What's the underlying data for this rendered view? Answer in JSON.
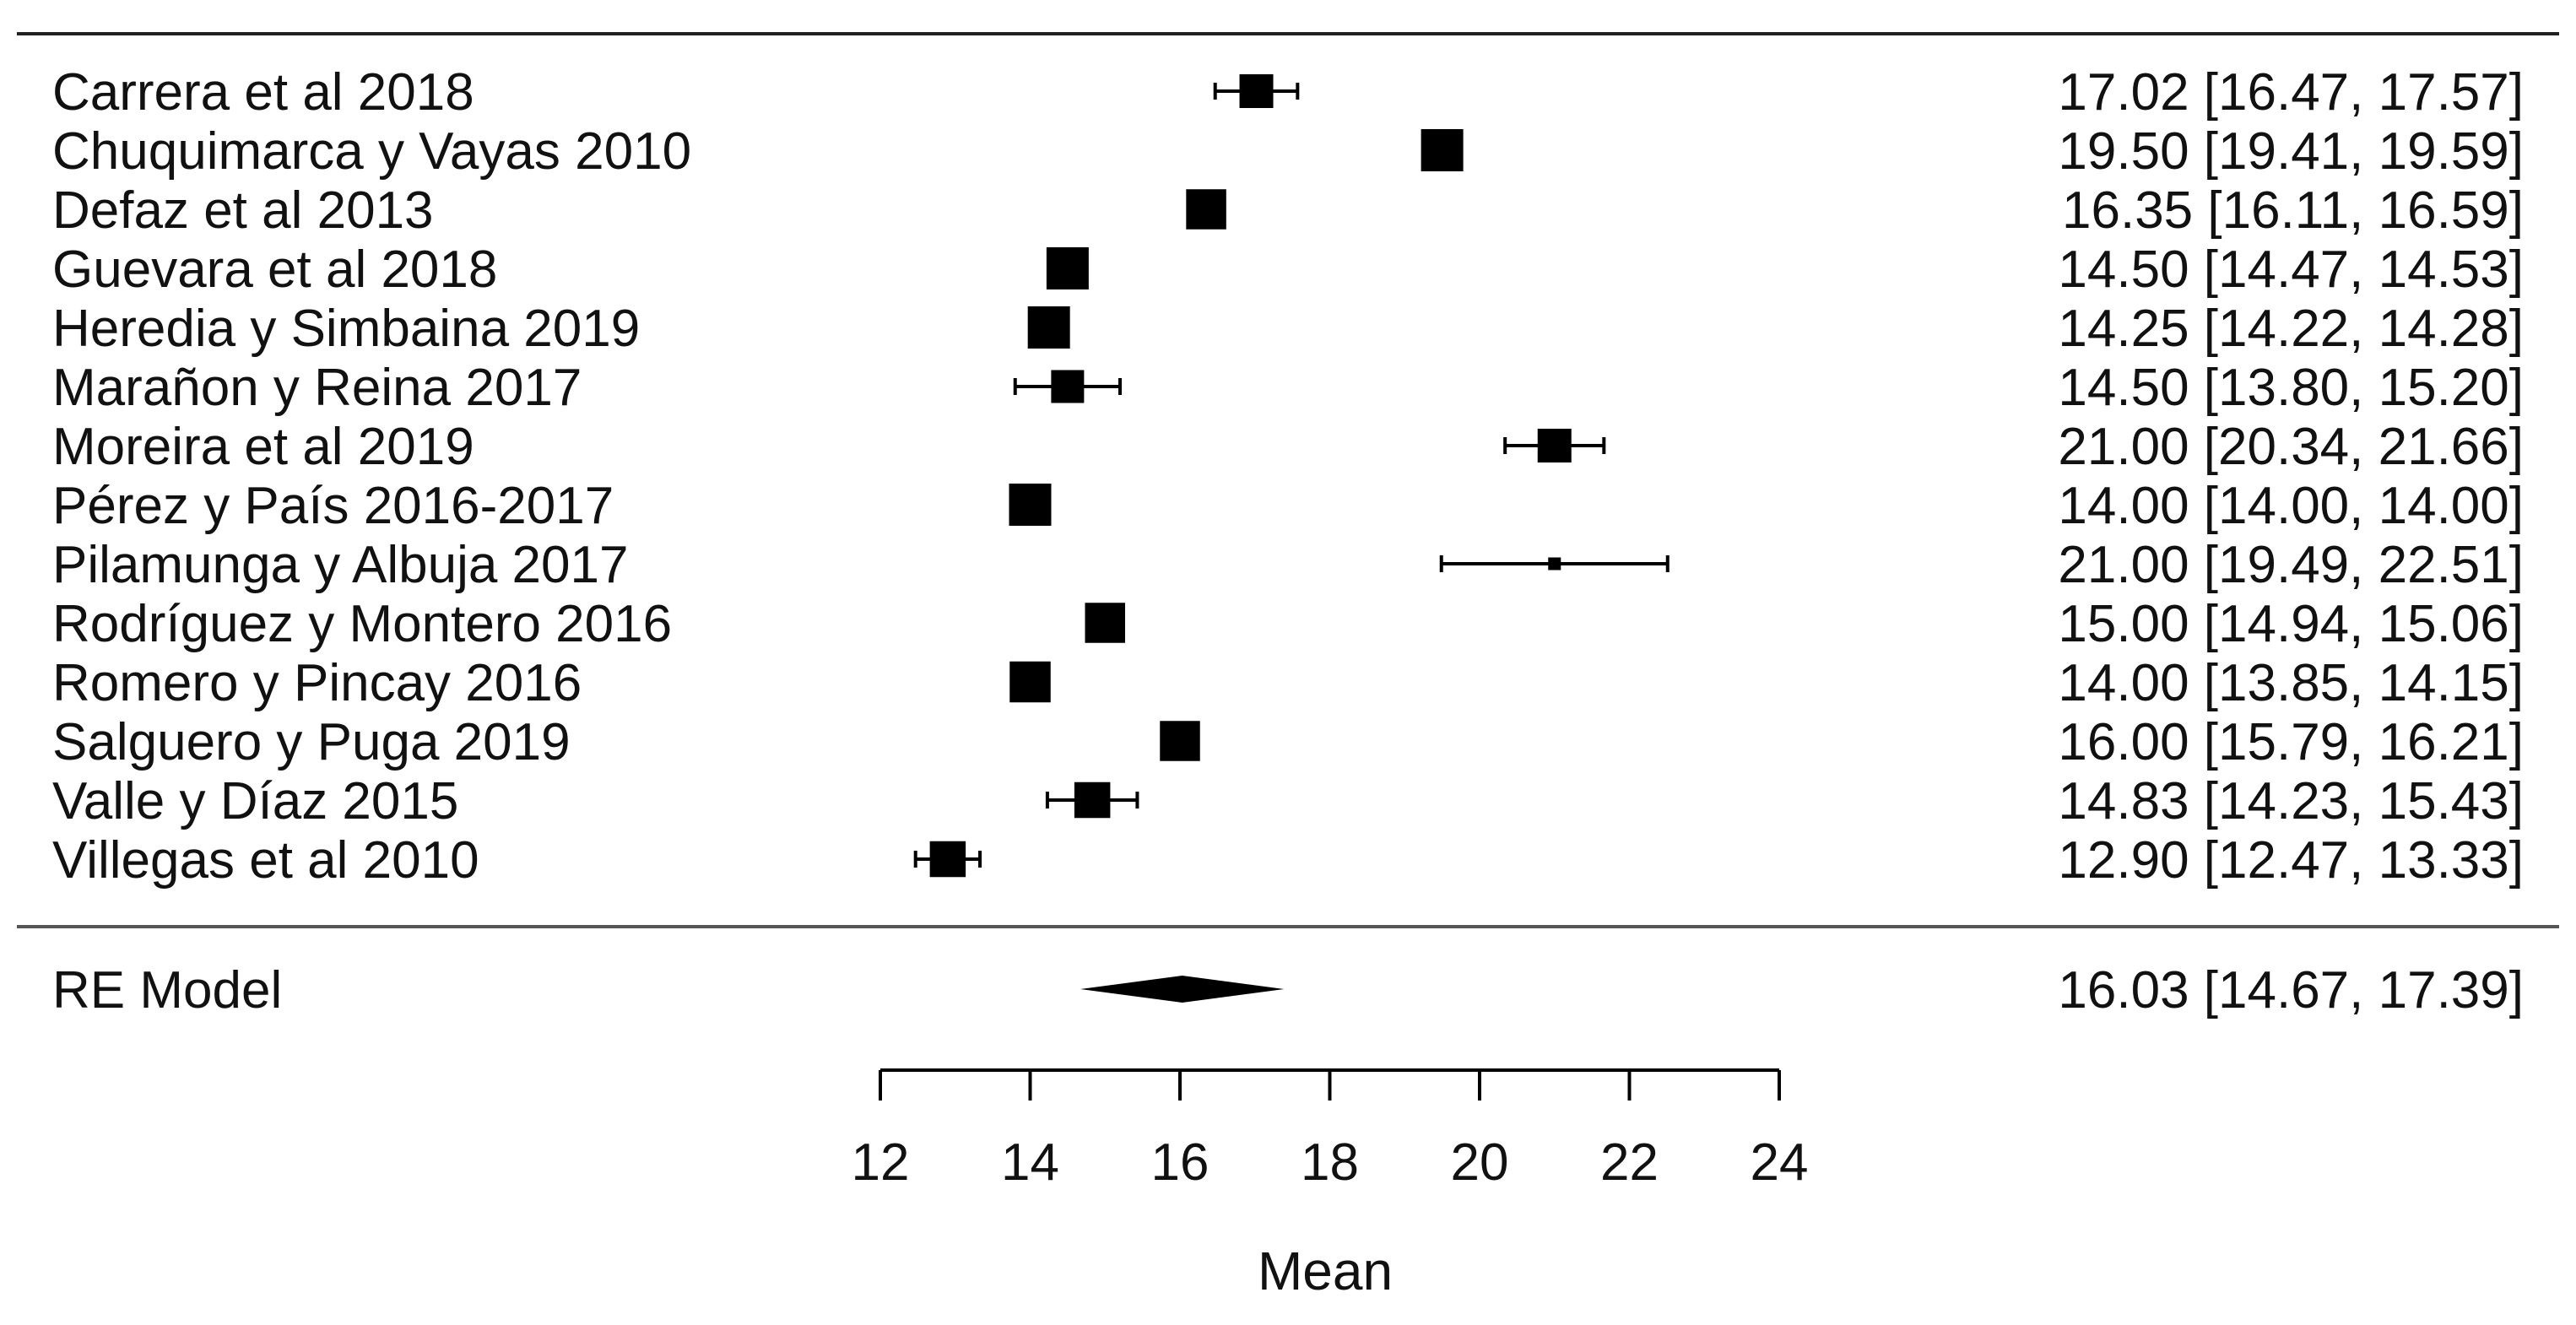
{
  "chart_data": {
    "type": "forest",
    "xlabel": "Mean",
    "xlim": [
      12,
      24
    ],
    "xticks": [
      12,
      14,
      16,
      18,
      20,
      22,
      24
    ],
    "studies": [
      {
        "label": "Carrera et al 2018",
        "mean": 17.02,
        "lower": 16.47,
        "upper": 17.57,
        "text": "17.02 [16.47, 17.57]",
        "marker_size": 0.8
      },
      {
        "label": "Chuquimarca y Vayas 2010",
        "mean": 19.5,
        "lower": 19.41,
        "upper": 19.59,
        "text": "19.50 [19.41, 19.59]",
        "marker_size": 1.0
      },
      {
        "label": "Defaz et al 2013",
        "mean": 16.35,
        "lower": 16.11,
        "upper": 16.59,
        "text": "16.35 [16.11, 16.59]",
        "marker_size": 0.95
      },
      {
        "label": "Guevara et al 2018",
        "mean": 14.5,
        "lower": 14.47,
        "upper": 14.53,
        "text": "14.50 [14.47, 14.53]",
        "marker_size": 1.0
      },
      {
        "label": "Heredia y Simbaina 2019",
        "mean": 14.25,
        "lower": 14.22,
        "upper": 14.28,
        "text": "14.25 [14.22, 14.28]",
        "marker_size": 1.0
      },
      {
        "label": "Marañon y Reina 2017",
        "mean": 14.5,
        "lower": 13.8,
        "upper": 15.2,
        "text": "14.50 [13.80, 15.20]",
        "marker_size": 0.78
      },
      {
        "label": "Moreira et al 2019",
        "mean": 21.0,
        "lower": 20.34,
        "upper": 21.66,
        "text": "21.00 [20.34, 21.66]",
        "marker_size": 0.8
      },
      {
        "label": "Pérez y País 2016-2017",
        "mean": 14.0,
        "lower": 14.0,
        "upper": 14.0,
        "text": "14.00 [14.00, 14.00]",
        "marker_size": 1.0
      },
      {
        "label": "Pilamunga y Albuja 2017",
        "mean": 21.0,
        "lower": 19.49,
        "upper": 22.51,
        "text": "21.00 [19.49, 22.51]",
        "marker_size": 0.3
      },
      {
        "label": "Rodríguez y Montero 2016",
        "mean": 15.0,
        "lower": 14.94,
        "upper": 15.06,
        "text": "15.00 [14.94, 15.06]",
        "marker_size": 0.95
      },
      {
        "label": "Romero y Pincay 2016",
        "mean": 14.0,
        "lower": 13.85,
        "upper": 14.15,
        "text": "14.00 [13.85, 14.15]",
        "marker_size": 0.97
      },
      {
        "label": "Salguero y Puga 2019",
        "mean": 16.0,
        "lower": 15.79,
        "upper": 16.21,
        "text": "16.00 [15.79, 16.21]",
        "marker_size": 0.95
      },
      {
        "label": "Valle y Díaz 2015",
        "mean": 14.83,
        "lower": 14.23,
        "upper": 15.43,
        "text": "14.83 [14.23, 15.43]",
        "marker_size": 0.85
      },
      {
        "label": "Villegas et al 2010",
        "mean": 12.9,
        "lower": 12.47,
        "upper": 13.33,
        "text": "12.90 [12.47, 13.33]",
        "marker_size": 0.85
      }
    ],
    "summary": {
      "label": "RE Model",
      "mean": 16.03,
      "lower": 14.67,
      "upper": 17.39,
      "text": "16.03 [14.67, 17.39]"
    }
  }
}
